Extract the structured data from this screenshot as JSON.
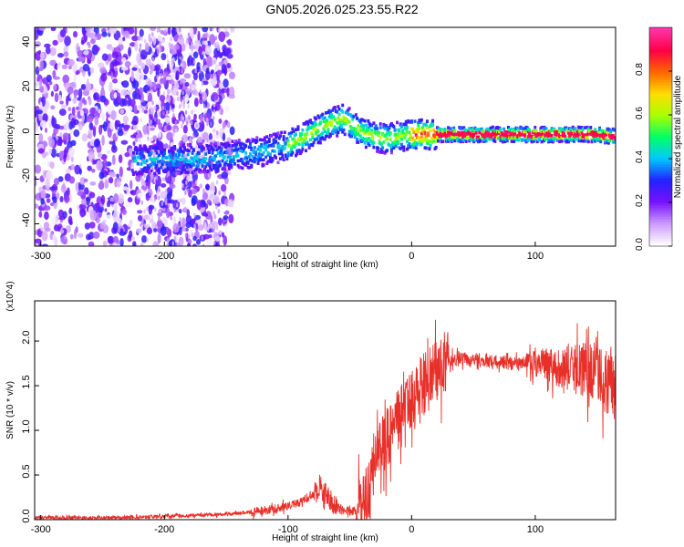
{
  "title": "GN05.2026.025.23.55.R22",
  "colors": {
    "snr_line": "#e8302a",
    "frame": "#000000"
  },
  "colorbar": {
    "label": "Normalized spectral amplitude",
    "ticks": [
      "0.0",
      "0.2",
      "0.4",
      "0.6",
      "0.8"
    ],
    "range": [
      0,
      1
    ],
    "stops": [
      "#ffffff",
      "#cc99ff",
      "#7711ff",
      "#2222ff",
      "#00c8ff",
      "#00ff66",
      "#aaff00",
      "#ffdd00",
      "#ff6600",
      "#ff0044",
      "#ff33aa"
    ]
  },
  "chart_data": [
    {
      "type": "heatmap",
      "xlabel": "Height of straight line (km)",
      "ylabel": "Frequency (Hz)",
      "xlim": [
        -305,
        165
      ],
      "ylim": [
        -50,
        48
      ],
      "xticks": [
        -300,
        -200,
        -100,
        0,
        100
      ],
      "yticks": [
        -40,
        -20,
        0,
        20,
        40
      ],
      "ridge": {
        "x": [
          -225,
          -200,
          -175,
          -150,
          -125,
          -100,
          -90,
          -80,
          -70,
          -60,
          -55,
          -50,
          -45,
          -40,
          -35,
          -30,
          -20,
          -10,
          0,
          20,
          50,
          100,
          150,
          165
        ],
        "y": [
          -12,
          -11,
          -11,
          -10,
          -8,
          -5,
          -2,
          1,
          4,
          6,
          7,
          5,
          3,
          1,
          0,
          -1,
          -2,
          -1,
          0,
          0,
          0,
          0,
          0,
          -1
        ]
      }
    },
    {
      "type": "line",
      "xlabel": "Height of straight line (km)",
      "ylabel": "SNR (10 * v/v)",
      "y_multiplier": "(x10^4)",
      "xlim": [
        -305,
        165
      ],
      "ylim": [
        0,
        2.45
      ],
      "xticks": [
        -300,
        -200,
        -100,
        0,
        100
      ],
      "yticks": [
        "0.0",
        "0.5",
        "1.0",
        "1.5",
        "2.0"
      ],
      "series": [
        {
          "x": [
            -305,
            -250,
            -220,
            -200,
            -150,
            -120,
            -100,
            -90,
            -80,
            -75,
            -70,
            -60,
            -50,
            -40,
            -35,
            -32,
            -30,
            -25,
            -20,
            -15,
            -10,
            -5,
            0,
            5,
            10,
            15,
            20,
            25,
            30,
            35,
            40,
            50,
            60,
            70,
            80,
            90,
            100,
            110,
            120,
            130,
            140,
            150,
            160,
            165
          ],
          "y": [
            0.02,
            0.02,
            0.03,
            0.04,
            0.06,
            0.1,
            0.15,
            0.2,
            0.28,
            0.35,
            0.3,
            0.12,
            0.09,
            0.12,
            0.3,
            0.55,
            0.68,
            0.8,
            0.9,
            1.05,
            1.15,
            1.25,
            1.35,
            1.45,
            1.52,
            1.58,
            1.65,
            1.72,
            1.78,
            1.79,
            1.8,
            1.79,
            1.78,
            1.76,
            1.75,
            1.74,
            1.74,
            1.73,
            1.72,
            1.7,
            1.68,
            1.62,
            1.55,
            1.5
          ]
        }
      ]
    }
  ]
}
